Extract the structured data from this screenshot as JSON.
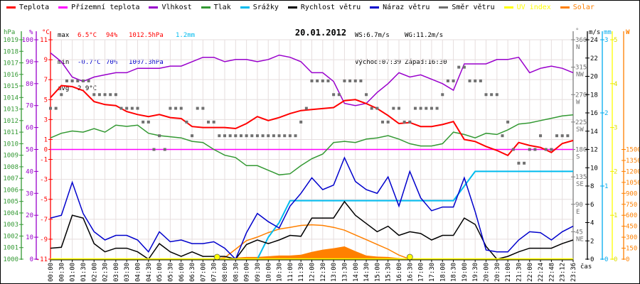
{
  "legend": [
    {
      "label": "Teplota",
      "color": "#ff0000"
    },
    {
      "label": "Přízemní teplota",
      "color": "#ff00ff"
    },
    {
      "label": "Vlhkost",
      "color": "#9900cc"
    },
    {
      "label": "Tlak",
      "color": "#339933"
    },
    {
      "label": "Srážky",
      "color": "#00bbee"
    },
    {
      "label": "Rychlost větru",
      "color": "#000000"
    },
    {
      "label": "Náraz větru",
      "color": "#0000cc"
    },
    {
      "label": "Směr větru",
      "color": "#707070"
    },
    {
      "label": "UV index",
      "color": "#ffff00"
    },
    {
      "label": "Solar",
      "color": "#ff8000"
    }
  ],
  "stats": {
    "max": {
      "label": "max",
      "temp": "6.5°C",
      "hum": "94%",
      "press": "1012.5hPa",
      "rain": "1.2mm"
    },
    "min": {
      "label": "min",
      "temp": "-0.7°C",
      "hum": "70%",
      "press": "1007.3hPa"
    },
    "avg": {
      "label": "avg",
      "temp": "2.9°C"
    }
  },
  "wind_stats": {
    "ws": "WS:6.7m/s",
    "wg": "WG:11.2m/s",
    "sunrise": "Východ:07:39",
    "sunset": "Západ:16:30"
  },
  "chart_data": {
    "type": "line",
    "title": "20.01.2012",
    "xlabel": "čas",
    "x": [
      "00:00",
      "00:30",
      "01:00",
      "01:30",
      "02:00",
      "02:30",
      "03:00",
      "03:30",
      "04:00",
      "04:30",
      "05:00",
      "05:30",
      "06:00",
      "06:30",
      "07:00",
      "07:30",
      "08:00",
      "08:30",
      "09:00",
      "09:30",
      "10:00",
      "10:30",
      "11:00",
      "11:30",
      "12:00",
      "12:30",
      "13:00",
      "13:30",
      "14:00",
      "14:30",
      "15:00",
      "15:30",
      "16:00",
      "16:30",
      "17:00",
      "17:30",
      "18:00",
      "18:30",
      "19:00",
      "19:30",
      "20:00",
      "20:30",
      "21:00",
      "21:30",
      "22:00",
      "22:24",
      "22:48",
      "23:12",
      "23:36"
    ],
    "grid": true,
    "axes": {
      "pressure": {
        "unit": "hPa",
        "range": [
          1000,
          1019
        ],
        "ticks": [
          1000,
          1001,
          1002,
          1003,
          1004,
          1005,
          1006,
          1007,
          1008,
          1009,
          1010,
          1011,
          1012,
          1013,
          1014,
          1015,
          1016,
          1017,
          1018,
          1019
        ],
        "color": "#339933"
      },
      "humidity": {
        "unit": "%",
        "range": [
          0,
          100
        ],
        "ticks": [
          0,
          10,
          20,
          30,
          40,
          50,
          60,
          70,
          80,
          90,
          100
        ],
        "color": "#9900cc"
      },
      "temperature": {
        "unit": "°C",
        "range": [
          -11,
          11
        ],
        "ticks": [
          11,
          9,
          7,
          5,
          3,
          1,
          0,
          -1,
          -3,
          -5,
          -7,
          -9,
          -11
        ],
        "color": "#ff0000"
      },
      "direction": {
        "unit": "°",
        "range": [
          0,
          360
        ],
        "ticks": [
          {
            "v": 45,
            "c": "NE"
          },
          {
            "v": 90,
            "c": "E"
          },
          {
            "v": 135,
            "c": "SE"
          },
          {
            "v": 180,
            "c": "S"
          },
          {
            "v": 225,
            "c": "SW"
          },
          {
            "v": 270,
            "c": "W"
          },
          {
            "v": 315,
            "c": "NW"
          },
          {
            "v": 360,
            "c": "N"
          }
        ],
        "color": "#808080"
      },
      "wind": {
        "unit": "m/s",
        "range": [
          0,
          24
        ],
        "ticks": [
          0,
          2,
          4,
          6,
          8,
          10,
          12,
          14,
          16,
          18,
          20,
          22,
          24
        ],
        "color": "#000000"
      },
      "rain": {
        "unit": "mm",
        "range": [
          0,
          3
        ],
        "ticks": [
          0,
          1,
          2,
          3
        ],
        "color": "#00aaee"
      },
      "uv": {
        "unit": "",
        "range": [
          0,
          5
        ],
        "ticks": [
          0,
          1,
          2,
          3,
          4,
          5
        ],
        "color": "#eeee00"
      },
      "solar": {
        "unit": "W",
        "range": [
          0,
          3000
        ],
        "ticks": [
          0,
          150,
          300,
          450,
          600,
          750,
          900,
          1050,
          1200,
          1350,
          1500
        ],
        "color": "#ff8000"
      }
    },
    "series": {
      "temperature": [
        5.2,
        6.4,
        6.3,
        5.9,
        4.8,
        4.5,
        4.4,
        3.8,
        3.5,
        3.3,
        3.5,
        3.2,
        3.1,
        2.3,
        2.2,
        2.2,
        2.2,
        2.1,
        2.6,
        3.3,
        2.9,
        3.2,
        3.6,
        3.9,
        4.0,
        4.1,
        4.2,
        4.9,
        5.0,
        4.6,
        4.1,
        3.4,
        2.6,
        2.7,
        2.3,
        2.3,
        2.5,
        2.8,
        1.0,
        0.8,
        0.3,
        -0.1,
        -0.6,
        0.7,
        0.4,
        0.2,
        -0.3,
        0.6,
        0.9
      ],
      "dew_point": [
        0,
        0,
        0,
        0,
        0,
        0,
        0,
        0,
        0,
        0,
        0,
        0,
        0,
        0,
        0,
        0,
        0,
        0,
        0,
        0,
        0,
        0,
        0,
        0,
        0,
        0,
        0,
        0,
        0,
        0,
        0,
        0,
        0,
        0,
        0,
        0,
        0,
        0,
        0,
        0,
        0,
        0,
        0,
        0,
        0,
        0,
        0,
        0,
        0
      ],
      "humidity": [
        94,
        90,
        83,
        81,
        83,
        84,
        85,
        85,
        87,
        87,
        87,
        88,
        88,
        90,
        92,
        92,
        90,
        91,
        91,
        90,
        91,
        93,
        92,
        90,
        85,
        85,
        81,
        71,
        70,
        71,
        76,
        80,
        85,
        83,
        84,
        82,
        80,
        77,
        89,
        89,
        89,
        91,
        91,
        92,
        85,
        87,
        88,
        87,
        85
      ],
      "pressure": [
        1010.5,
        1010.9,
        1011.1,
        1011.0,
        1011.3,
        1011.0,
        1011.6,
        1011.5,
        1011.6,
        1010.9,
        1010.7,
        1010.6,
        1010.5,
        1010.2,
        1010.1,
        1009.5,
        1009.0,
        1008.8,
        1008.1,
        1008.1,
        1007.7,
        1007.3,
        1007.4,
        1008.1,
        1008.7,
        1009.1,
        1010.1,
        1010.2,
        1010.1,
        1010.4,
        1010.5,
        1010.7,
        1010.4,
        1010.0,
        1009.8,
        1009.8,
        1010.0,
        1011.0,
        1010.8,
        1010.5,
        1010.9,
        1010.8,
        1011.2,
        1011.7,
        1011.8,
        1012.0,
        1012.2,
        1012.4,
        1012.5
      ],
      "rain": [
        0,
        0,
        0,
        0,
        0,
        0,
        0,
        0,
        0,
        0,
        0,
        0,
        0,
        0,
        0,
        0,
        0,
        0,
        0,
        0,
        0.3,
        0.5,
        0.8,
        0.8,
        0.8,
        0.8,
        0.8,
        0.8,
        0.8,
        0.8,
        0.8,
        0.8,
        0.8,
        0.8,
        0.8,
        0.8,
        0.8,
        0.8,
        1.0,
        1.2,
        1.2,
        1.2,
        1.2,
        1.2,
        1.2,
        1.2,
        1.2,
        1.2,
        1.2
      ],
      "wind_speed": [
        1.2,
        1.3,
        4.8,
        4.5,
        1.7,
        0.8,
        1.2,
        1.2,
        0.8,
        0,
        1.7,
        0.8,
        0.3,
        0.8,
        0.3,
        0.3,
        0.3,
        0,
        1.6,
        2.1,
        1.7,
        2.1,
        2.6,
        2.5,
        4.5,
        4.5,
        4.5,
        6.3,
        4.8,
        3.9,
        3.0,
        3.6,
        2.6,
        3.0,
        2.8,
        2.1,
        2.6,
        2.6,
        4.5,
        3.8,
        1.4,
        0,
        0.3,
        0.8,
        1.2,
        1.2,
        1.2,
        1.7,
        2.1
      ],
      "wind_gust": [
        4.5,
        4.8,
        8.4,
        5.0,
        3.0,
        2.1,
        2.6,
        2.6,
        2.1,
        0.8,
        3.0,
        1.9,
        2.1,
        1.7,
        1.7,
        1.9,
        1.2,
        0,
        2.9,
        5.0,
        4.1,
        3.4,
        5.8,
        7.2,
        8.9,
        7.6,
        8.1,
        11.1,
        8.5,
        7.6,
        7.2,
        9.0,
        5.8,
        9.6,
        6.7,
        5.3,
        5.7,
        5.7,
        8.9,
        5.2,
        1.0,
        0.8,
        0.8,
        2.1,
        3.0,
        2.9,
        2.1,
        3.0,
        3.6
      ],
      "uv_index": [
        0,
        0,
        0,
        0,
        0,
        0,
        0,
        0,
        0,
        0,
        0,
        0,
        0,
        0,
        0,
        0,
        0,
        0,
        0,
        0,
        0,
        0,
        0,
        0,
        0,
        0,
        0,
        0,
        0,
        0,
        0,
        0,
        0,
        0,
        0,
        0,
        0,
        0,
        0,
        0,
        0,
        0,
        0,
        0,
        0,
        0,
        0,
        0,
        0
      ],
      "solar": [
        0,
        0,
        0,
        0,
        0,
        0,
        0,
        0,
        0,
        0,
        0,
        0,
        0,
        0,
        0,
        0,
        5,
        20,
        30,
        30,
        40,
        50,
        50,
        60,
        100,
        130,
        150,
        175,
        110,
        50,
        35,
        30,
        15,
        0,
        0,
        0,
        0,
        0,
        0,
        0,
        0,
        0,
        0,
        0,
        0,
        0,
        0,
        0,
        0
      ],
      "solar_theoretical": [
        0,
        0,
        0,
        0,
        0,
        0,
        0,
        0,
        0,
        0,
        0,
        0,
        0,
        0,
        0,
        0,
        20,
        136,
        253,
        302,
        363,
        412,
        435,
        461,
        470,
        461,
        435,
        396,
        331,
        266,
        201,
        136,
        55,
        0,
        0,
        0,
        0,
        0,
        0,
        0,
        0,
        0,
        0,
        0,
        0,
        0,
        0,
        0,
        0
      ]
    },
    "wind_direction": [
      247.5,
      247.5,
      270,
      292.5,
      292.5,
      292.5,
      292.5,
      292.5,
      270,
      270,
      270,
      270,
      270,
      247.5,
      247.5,
      247.5,
      247.5,
      225,
      225,
      180,
      202.5,
      180,
      247.5,
      247.5,
      247.5,
      225,
      202.5,
      247.5,
      247.5,
      225,
      225,
      202.5,
      202.5,
      202.5,
      202.5,
      202.5,
      202.5,
      202.5,
      202.5,
      202.5,
      202.5,
      202.5,
      202.5,
      202.5,
      202.5,
      202.5,
      225,
      247.5,
      292.5,
      292.5,
      292.5,
      292.5,
      270,
      270,
      292.5,
      292.5,
      292.5,
      292.5,
      270,
      247.5,
      247.5,
      225,
      225,
      247.5,
      247.5,
      225,
      225,
      247.5,
      247.5,
      247.5,
      247.5,
      247.5,
      270,
      292.5,
      292.5,
      315,
      315,
      292.5,
      292.5,
      292.5,
      270,
      270,
      270,
      202.5,
      225,
      180,
      157.5,
      157.5,
      180,
      180,
      202.5,
      180,
      180,
      202.5,
      202.5,
      202.5
    ],
    "sun_markers": [
      {
        "time": "07:39"
      },
      {
        "time": "16:30"
      }
    ]
  }
}
